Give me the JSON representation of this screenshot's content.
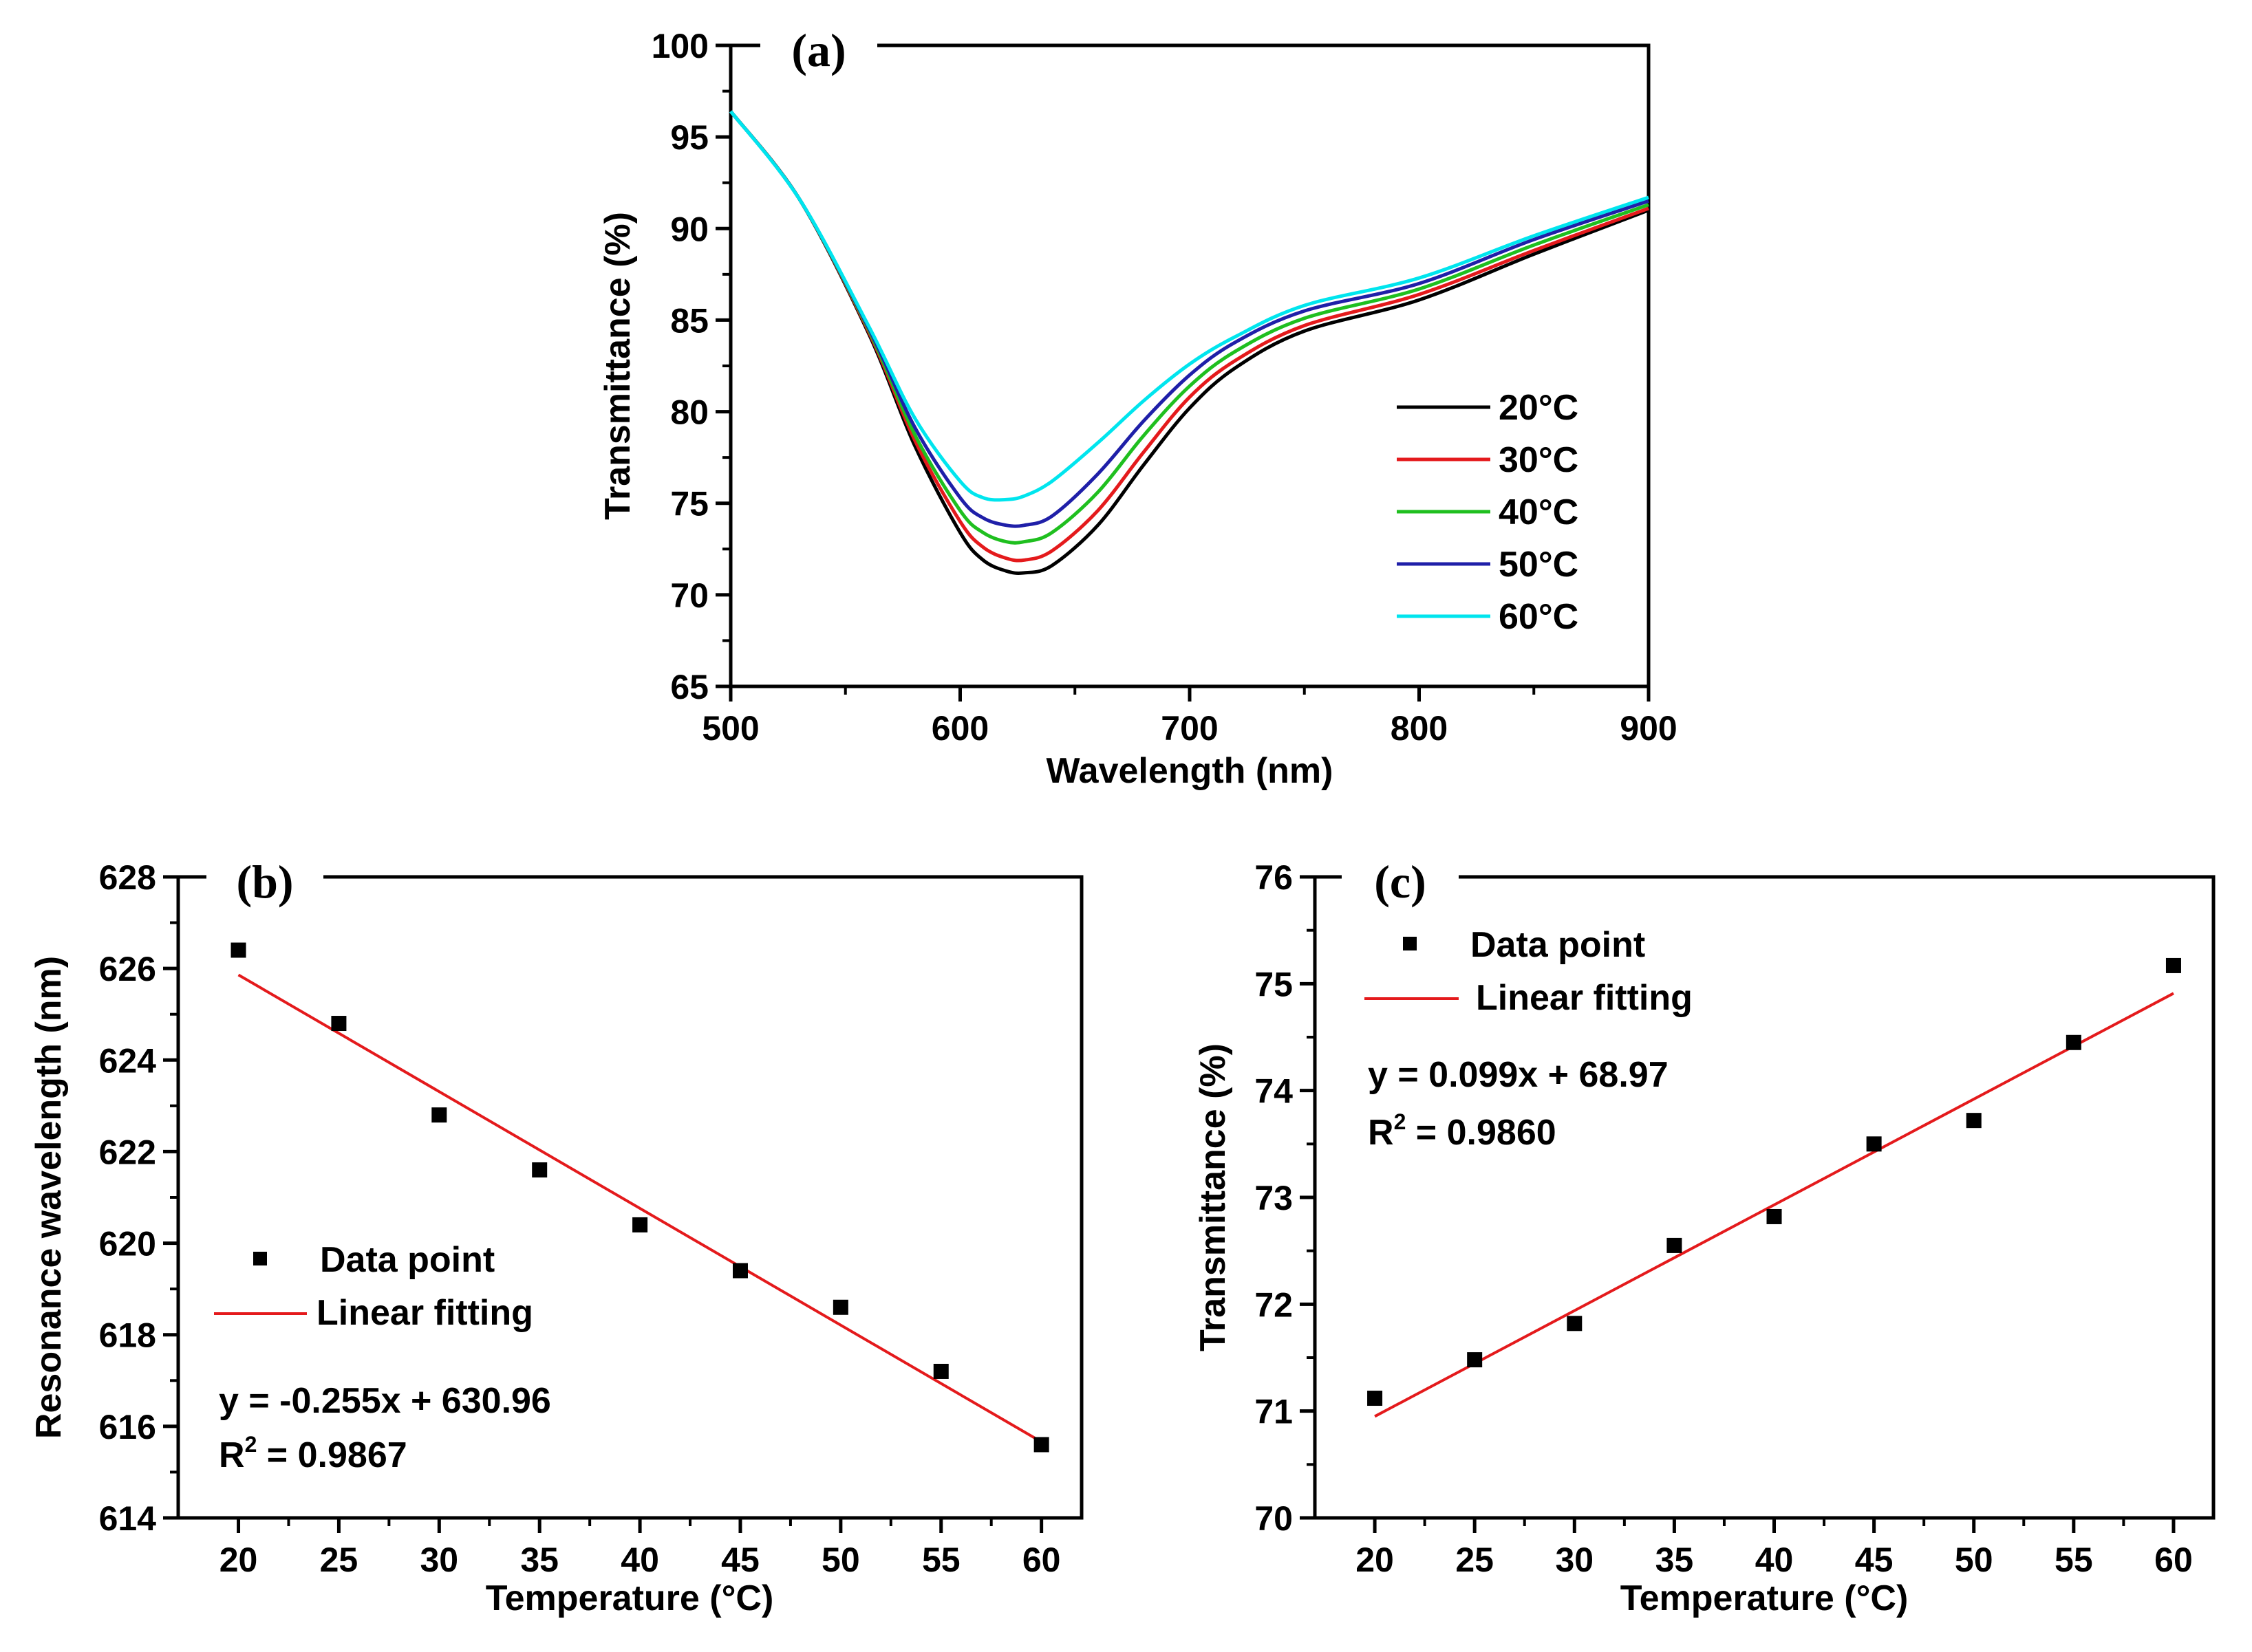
{
  "chart_data": [
    {
      "id": "a",
      "type": "line",
      "panel_label": "(a)",
      "xlabel": "Wavelength (nm)",
      "ylabel": "Transmittance (%)",
      "xlim": [
        500,
        900
      ],
      "ylim": [
        65,
        100
      ],
      "xticks": [
        500,
        600,
        700,
        800,
        900
      ],
      "yticks": [
        65,
        70,
        75,
        80,
        85,
        90,
        95,
        100
      ],
      "legend_position": "bottom-right",
      "series": [
        {
          "name": "20°C",
          "color": "#000000",
          "x": [
            500,
            530,
            560,
            580,
            600,
            610,
            620,
            628,
            640,
            660,
            680,
            700,
            720,
            750,
            800,
            850,
            900
          ],
          "y": [
            96.4,
            91.6,
            84.3,
            78.2,
            73.4,
            71.9,
            71.3,
            71.2,
            71.6,
            73.8,
            77.1,
            80.2,
            82.4,
            84.4,
            86.1,
            88.6,
            91.0
          ]
        },
        {
          "name": "30°C",
          "color": "#e41a1c",
          "x": [
            500,
            530,
            560,
            580,
            600,
            610,
            620,
            628,
            640,
            660,
            680,
            700,
            720,
            750,
            800,
            850,
            900
          ],
          "y": [
            96.4,
            91.6,
            84.4,
            78.5,
            74.0,
            72.6,
            72.0,
            71.9,
            72.4,
            74.6,
            77.8,
            80.8,
            82.8,
            84.7,
            86.4,
            88.8,
            91.1
          ]
        },
        {
          "name": "40°C",
          "color": "#1fbf1f",
          "x": [
            500,
            530,
            560,
            580,
            600,
            610,
            620,
            628,
            640,
            660,
            680,
            700,
            720,
            750,
            800,
            850,
            900
          ],
          "y": [
            96.4,
            91.6,
            84.5,
            78.8,
            74.6,
            73.4,
            72.9,
            72.9,
            73.4,
            75.6,
            78.7,
            81.4,
            83.3,
            85.1,
            86.7,
            89.1,
            91.3
          ]
        },
        {
          "name": "50°C",
          "color": "#1f1fa8",
          "x": [
            500,
            530,
            560,
            580,
            600,
            610,
            620,
            628,
            640,
            660,
            680,
            700,
            720,
            750,
            800,
            850,
            900
          ],
          "y": [
            96.4,
            91.6,
            84.6,
            79.2,
            75.3,
            74.2,
            73.8,
            73.8,
            74.3,
            76.6,
            79.5,
            82.0,
            83.8,
            85.5,
            87.0,
            89.4,
            91.5
          ]
        },
        {
          "name": "60°C",
          "color": "#00e5ee",
          "x": [
            500,
            530,
            560,
            580,
            600,
            610,
            620,
            628,
            640,
            660,
            680,
            700,
            720,
            750,
            800,
            850,
            900
          ],
          "y": [
            96.4,
            91.6,
            84.7,
            79.7,
            76.2,
            75.3,
            75.2,
            75.4,
            76.2,
            78.3,
            80.6,
            82.6,
            84.1,
            85.8,
            87.3,
            89.6,
            91.7
          ]
        }
      ]
    },
    {
      "id": "b",
      "type": "scatter",
      "panel_label": "(b)",
      "xlabel": "Temperature (°C)",
      "ylabel": "Resonance wavelength (nm)",
      "xlim": [
        17,
        62
      ],
      "ylim": [
        614,
        628
      ],
      "xticks": [
        20,
        25,
        30,
        35,
        40,
        45,
        50,
        55,
        60
      ],
      "yticks": [
        614,
        616,
        618,
        620,
        622,
        624,
        626,
        628
      ],
      "legend_position": "middle-left",
      "legend": {
        "data_label": "Data point",
        "fit_label": "Linear fitting"
      },
      "equation": "y = -0.255x + 630.96",
      "r2_label": "R",
      "r2_sup": "2",
      "r2_value": " = 0.9867",
      "fit": {
        "slope": -0.255,
        "intercept": 630.96,
        "x_range": [
          20,
          60
        ],
        "color": "#e41a1c"
      },
      "x": [
        20,
        25,
        30,
        35,
        40,
        45,
        50,
        55,
        60
      ],
      "y": [
        626.4,
        624.8,
        622.8,
        621.6,
        620.4,
        619.4,
        618.6,
        617.2,
        615.6
      ]
    },
    {
      "id": "c",
      "type": "scatter",
      "panel_label": "(c)",
      "xlabel": "Temperature (°C)",
      "ylabel": "Transmittance (%)",
      "xlim": [
        17,
        62
      ],
      "ylim": [
        70,
        76
      ],
      "xticks": [
        20,
        25,
        30,
        35,
        40,
        45,
        50,
        55,
        60
      ],
      "yticks": [
        70,
        71,
        72,
        73,
        74,
        75,
        76
      ],
      "legend_position": "top-left",
      "legend": {
        "data_label": "Data point",
        "fit_label": "Linear fitting"
      },
      "equation": "y = 0.099x + 68.97",
      "r2_label": "R",
      "r2_sup": "2",
      "r2_value": " = 0.9860",
      "fit": {
        "slope": 0.099,
        "intercept": 68.97,
        "x_range": [
          20,
          60
        ],
        "color": "#e41a1c"
      },
      "x": [
        20,
        25,
        30,
        35,
        40,
        45,
        50,
        55,
        60
      ],
      "y": [
        71.12,
        71.48,
        71.82,
        72.55,
        72.82,
        73.5,
        73.72,
        74.45,
        75.17
      ]
    }
  ]
}
